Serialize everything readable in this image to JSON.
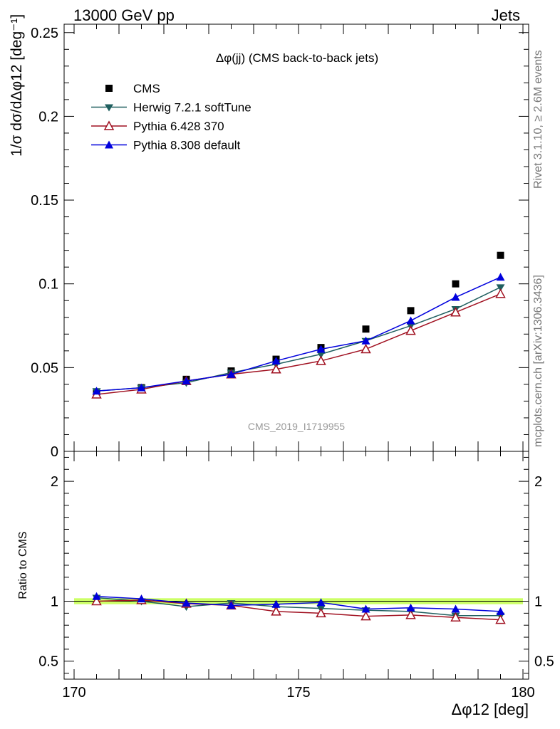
{
  "header": {
    "left": "13000 GeV pp",
    "right": "Jets"
  },
  "side_labels": {
    "top": "Rivet 3.1.10, ≥ 2.6M events",
    "bottom": "mcplots.cern.ch [arXiv:1306.3436]"
  },
  "watermark": "CMS_2019_I1719955",
  "colors": {
    "CMS": "#000000",
    "Herwig": "#1f5f5f",
    "Pythia6": "#a01020",
    "Pythia8": "#0000dd",
    "band": "#ccff66"
  },
  "chart_data": [
    {
      "type": "line",
      "title": "Δφ(jj) (CMS back-to-back jets)",
      "ylabel": "1/σ dσ/dΔφ12 [deg⁻¹]",
      "xlim": [
        170,
        180
      ],
      "ylim": [
        0,
        0.255
      ],
      "yticks": [
        0,
        0.05,
        0.1,
        0.15,
        0.2,
        0.25
      ],
      "ytick_labels": [
        "0",
        "0.05",
        "0.1",
        "0.15",
        "0.2",
        "0.25"
      ],
      "legend_position": "top-left",
      "x": [
        170.5,
        171.5,
        172.5,
        173.5,
        174.5,
        175.5,
        176.5,
        177.5,
        178.5,
        179.5
      ],
      "series": [
        {
          "name": "CMS",
          "marker": "square",
          "values": [
            0.035,
            0.038,
            0.043,
            0.048,
            0.055,
            0.062,
            0.073,
            0.084,
            0.1,
            0.117
          ]
        },
        {
          "name": "Herwig 7.2.1 softTune",
          "marker": "triangle-down",
          "values": [
            0.036,
            0.038,
            0.041,
            0.047,
            0.052,
            0.058,
            0.066,
            0.075,
            0.085,
            0.098
          ]
        },
        {
          "name": "Pythia 6.428 370",
          "marker": "triangle-up-open",
          "values": [
            0.034,
            0.037,
            0.042,
            0.046,
            0.049,
            0.054,
            0.061,
            0.072,
            0.083,
            0.094
          ]
        },
        {
          "name": "Pythia 8.308 default",
          "marker": "triangle-up",
          "values": [
            0.036,
            0.038,
            0.042,
            0.046,
            0.054,
            0.061,
            0.066,
            0.078,
            0.092,
            0.104
          ]
        }
      ]
    },
    {
      "type": "line",
      "xlabel": "Δφ12 [deg]",
      "ylabel": "Ratio to CMS",
      "xlim": [
        170,
        180
      ],
      "ylim": [
        0.35,
        2.25
      ],
      "yticks": [
        0.5,
        1,
        2
      ],
      "ytick_labels": [
        "0.5",
        "1",
        "2"
      ],
      "xticks": [
        170,
        175,
        180
      ],
      "xtick_labels": [
        "170",
        "175",
        "180"
      ],
      "x": [
        170.5,
        171.5,
        172.5,
        173.5,
        174.5,
        175.5,
        176.5,
        177.5,
        178.5,
        179.5
      ],
      "band": [
        0.975,
        1.025
      ],
      "series": [
        {
          "name": "Herwig 7.2.1 softTune",
          "values": [
            1.03,
            1.0,
            0.955,
            0.985,
            0.955,
            0.94,
            0.925,
            0.915,
            0.88,
            0.88
          ]
        },
        {
          "name": "Pythia 6.428 370",
          "values": [
            1.0,
            1.01,
            0.98,
            0.965,
            0.915,
            0.9,
            0.875,
            0.885,
            0.865,
            0.845
          ]
        },
        {
          "name": "Pythia 8.308 default",
          "values": [
            1.04,
            1.02,
            0.985,
            0.965,
            0.975,
            0.99,
            0.935,
            0.945,
            0.935,
            0.915
          ]
        }
      ]
    }
  ]
}
